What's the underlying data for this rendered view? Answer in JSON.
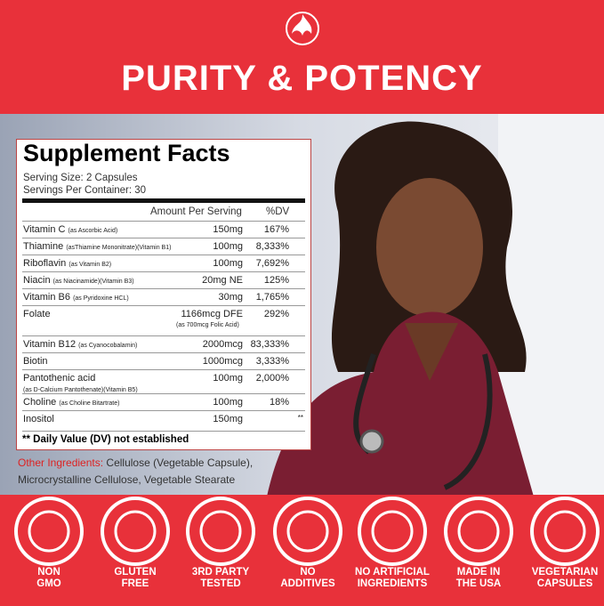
{
  "header": {
    "title": "PURITY & POTENCY"
  },
  "panel": {
    "title": "Supplement Facts",
    "serving_size": "Serving Size: 2 Capsules",
    "servings_per_container": "Servings Per Container: 30",
    "columns": [
      "Amount Per Serving",
      "%DV"
    ],
    "rows": [
      {
        "name": "Vitamin C",
        "source": "(as Ascorbic Acid)",
        "amount": "150mg",
        "dv": "167%"
      },
      {
        "name": "Thiamine",
        "source": "(asThiamine Mononitrate)(Vitamin B1)",
        "amount": "100mg",
        "dv": "8,333%"
      },
      {
        "name": "Riboflavin",
        "source": "(as Vitamin B2)",
        "amount": "100mg",
        "dv": "7,692%"
      },
      {
        "name": "Niacin",
        "source": "(as Niacinamide)(Vitamin B3)",
        "amount": "20mg NE",
        "dv": "125%"
      },
      {
        "name": "Vitamin B6",
        "source": "(as Pyridoxine HCL)",
        "amount": "30mg",
        "dv": "1,765%"
      },
      {
        "name": "Folate",
        "amount": "1166mcg DFE",
        "amount_note": "(as 700mcg Folic Acid)",
        "dv": "292%"
      },
      {
        "name": "Vitamin B12",
        "source": "(as Cyanocobalamin)",
        "amount": "2000mcg",
        "dv": "83,333%"
      },
      {
        "name": "Biotin",
        "amount": "1000mcg",
        "dv": "3,333%"
      },
      {
        "name": "Pantothenic acid",
        "source": "(as D-Calcium Pantothenate)(Vitamin B5)",
        "amount": "100mg",
        "dv": "2,000%"
      },
      {
        "name": "Choline",
        "source": "(as Choline Bitartrate)",
        "amount": "100mg",
        "dv": "18%"
      },
      {
        "name": "Inositol",
        "amount": "150mg",
        "dv": "**"
      }
    ],
    "footnote": "** Daily Value (DV) not established"
  },
  "other_ingredients": {
    "label": "Other Ingredients:",
    "text": "Cellulose (Vegetable Capsule), Microcrystalline Cellulose, Vegetable Stearate"
  },
  "badges": [
    {
      "lines": [
        "NON",
        "GMO"
      ]
    },
    {
      "lines": [
        "GLUTEN",
        "FREE"
      ]
    },
    {
      "lines": [
        "3RD PARTY",
        "TESTED"
      ]
    },
    {
      "lines": [
        "NO",
        "ADDITIVES"
      ]
    },
    {
      "lines": [
        "NO ARTIFICIAL",
        "INGREDIENTS"
      ]
    },
    {
      "lines": [
        "MADE IN",
        "THE USA"
      ]
    },
    {
      "lines": [
        "VEGETARIAN",
        "CAPSULES"
      ]
    }
  ]
}
